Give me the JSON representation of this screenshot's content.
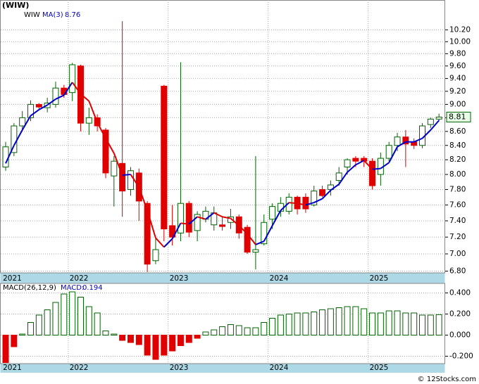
{
  "chart_data": [
    {
      "type": "candlestick",
      "title": "(WIW)",
      "log": true,
      "grid": true,
      "categories": [
        "2021",
        null,
        null,
        null,
        null,
        null,
        null,
        null,
        "2022",
        null,
        null,
        null,
        null,
        null,
        null,
        null,
        null,
        null,
        null,
        null,
        "2023",
        null,
        null,
        null,
        null,
        null,
        null,
        null,
        null,
        null,
        null,
        null,
        "2024",
        null,
        null,
        null,
        null,
        null,
        null,
        null,
        null,
        null,
        null,
        null,
        "2025",
        null,
        null,
        null,
        null,
        null,
        null,
        null,
        null
      ],
      "series": [
        {
          "name": "WIW",
          "up_color": "#006400",
          "down_color": "#e00000",
          "open": [
            8.1,
            8.3,
            8.68,
            8.8,
            9.0,
            8.95,
            9.0,
            9.25,
            9.18,
            9.6,
            8.72,
            8.8,
            8.62,
            7.98,
            8.15,
            7.8,
            8.02,
            7.62,
            6.92,
            9.28,
            7.34,
            7.25,
            7.62,
            7.28,
            7.42,
            7.35,
            7.35,
            7.38,
            7.45,
            7.32,
            7.02,
            7.12,
            7.42,
            7.52,
            7.52,
            7.7,
            7.7,
            7.6,
            7.8,
            7.8,
            7.92,
            8.1,
            8.22,
            8.22,
            8.18,
            8.0,
            8.22,
            8.4,
            8.52,
            8.45,
            8.4,
            8.7,
            8.78
          ],
          "high": [
            8.45,
            8.72,
            8.9,
            9.06,
            9.02,
            9.1,
            9.35,
            9.3,
            9.65,
            9.62,
            8.95,
            8.85,
            8.65,
            8.25,
            10.35,
            8.1,
            8.08,
            7.65,
            7.2,
            9.3,
            7.6,
            9.66,
            7.65,
            7.52,
            7.58,
            7.58,
            7.45,
            7.55,
            7.48,
            7.35,
            8.25,
            7.48,
            7.62,
            7.7,
            7.75,
            7.72,
            7.75,
            7.85,
            7.85,
            7.92,
            8.1,
            8.22,
            8.25,
            8.25,
            8.22,
            8.3,
            8.45,
            8.58,
            8.62,
            8.5,
            8.72,
            8.8,
            8.86
          ],
          "low": [
            8.05,
            8.25,
            8.6,
            8.75,
            8.92,
            8.88,
            8.95,
            9.1,
            9.05,
            8.6,
            8.55,
            8.6,
            7.95,
            7.58,
            7.45,
            7.72,
            7.4,
            6.79,
            6.88,
            7.15,
            7.1,
            7.15,
            7.2,
            7.15,
            7.38,
            7.28,
            7.28,
            7.3,
            7.18,
            7.0,
            6.82,
            7.1,
            7.3,
            7.45,
            7.48,
            7.48,
            7.5,
            7.58,
            7.7,
            7.72,
            7.85,
            8.0,
            8.1,
            8.1,
            7.8,
            7.85,
            8.18,
            8.32,
            8.1,
            8.35,
            8.36,
            8.65,
            8.75
          ],
          "close": [
            8.38,
            8.68,
            8.8,
            9.0,
            8.96,
            9.02,
            9.25,
            9.15,
            9.62,
            8.72,
            8.8,
            8.68,
            8.02,
            8.18,
            7.78,
            8.05,
            7.65,
            6.88,
            7.05,
            7.3,
            7.2,
            7.62,
            7.26,
            7.48,
            7.52,
            7.5,
            7.33,
            7.45,
            7.25,
            7.02,
            7.05,
            7.38,
            7.58,
            7.62,
            7.7,
            7.55,
            7.55,
            7.78,
            7.72,
            7.86,
            8.02,
            8.2,
            8.18,
            8.18,
            7.85,
            8.22,
            8.4,
            8.52,
            8.42,
            8.4,
            8.68,
            8.78,
            8.81
          ]
        },
        {
          "name": "MA(3)",
          "color": "#0000cc",
          "down_color": "#e00000",
          "values": [
            8.15,
            8.4,
            8.62,
            8.83,
            8.92,
            8.99,
            9.08,
            9.14,
            9.34,
            9.16,
            9.05,
            8.73,
            8.5,
            8.29,
            7.99,
            8.0,
            7.83,
            7.53,
            7.19,
            7.08,
            7.18,
            7.37,
            7.36,
            7.45,
            7.42,
            7.5,
            7.45,
            7.43,
            7.34,
            7.24,
            7.11,
            7.15,
            7.34,
            7.53,
            7.63,
            7.62,
            7.6,
            7.63,
            7.68,
            7.79,
            7.87,
            8.03,
            8.13,
            8.19,
            8.07,
            8.08,
            8.16,
            8.38,
            8.45,
            8.45,
            8.5,
            8.62,
            8.76
          ]
        }
      ],
      "ylim": [
        6.78,
        10.5
      ],
      "yticks": [
        {
          "value": 6.8,
          "label": "6.80"
        },
        {
          "value": 7.0,
          "label": "7.00"
        },
        {
          "value": 7.2,
          "label": "7.20"
        },
        {
          "value": 7.4,
          "label": "7.40"
        },
        {
          "value": 7.6,
          "label": "7.60"
        },
        {
          "value": 7.8,
          "label": "7.80"
        },
        {
          "value": 8.0,
          "label": "8.00"
        },
        {
          "value": 8.2,
          "label": "8.20"
        },
        {
          "value": 8.4,
          "label": "8.40"
        },
        {
          "value": 8.6,
          "label": "8.60"
        },
        {
          "value": 8.8,
          "label": "8.80"
        },
        {
          "value": 9.0,
          "label": "9.00"
        },
        {
          "value": 9.2,
          "label": "9.20"
        },
        {
          "value": 9.4,
          "label": "9.40"
        },
        {
          "value": 9.6,
          "label": "9.60"
        },
        {
          "value": 9.8,
          "label": "9.80"
        },
        {
          "value": 10.0,
          "label": "10.00"
        },
        {
          "value": 10.2,
          "label": "10.20"
        }
      ]
    },
    {
      "type": "bar",
      "title": "MACD(26,12,9)",
      "value_label": "MACD:",
      "grid": true,
      "categories": [
        "2021",
        null,
        null,
        null,
        null,
        null,
        null,
        null,
        "2022",
        null,
        null,
        null,
        null,
        null,
        null,
        null,
        null,
        null,
        null,
        null,
        "2023",
        null,
        null,
        null,
        null,
        null,
        null,
        null,
        null,
        null,
        null,
        null,
        "2024",
        null,
        null,
        null,
        null,
        null,
        null,
        null,
        null,
        null,
        null,
        null,
        "2025",
        null,
        null,
        null,
        null,
        null,
        null,
        null,
        null
      ],
      "up_color": "#006400",
      "down_color": "#e00000",
      "values": [
        -0.26,
        -0.11,
        0.01,
        0.12,
        0.19,
        0.24,
        0.31,
        0.39,
        0.41,
        0.36,
        0.27,
        0.21,
        0.04,
        0.01,
        -0.05,
        -0.07,
        -0.09,
        -0.19,
        -0.23,
        -0.19,
        -0.15,
        -0.1,
        -0.07,
        -0.03,
        0.03,
        0.05,
        0.08,
        0.1,
        0.09,
        0.07,
        0.07,
        0.12,
        0.16,
        0.19,
        0.2,
        0.21,
        0.21,
        0.22,
        0.24,
        0.25,
        0.26,
        0.27,
        0.27,
        0.25,
        0.21,
        0.21,
        0.23,
        0.23,
        0.21,
        0.21,
        0.19,
        0.19,
        0.194
      ],
      "ylim": [
        -0.27,
        0.49
      ],
      "yticks": [
        {
          "value": -0.2,
          "label": "-0.200"
        },
        {
          "value": 0,
          "label": "0.000"
        },
        {
          "value": 0.2,
          "label": "0.200"
        },
        {
          "value": 0.4,
          "label": "0.400"
        }
      ]
    }
  ],
  "footer": "© 12Stocks.com"
}
